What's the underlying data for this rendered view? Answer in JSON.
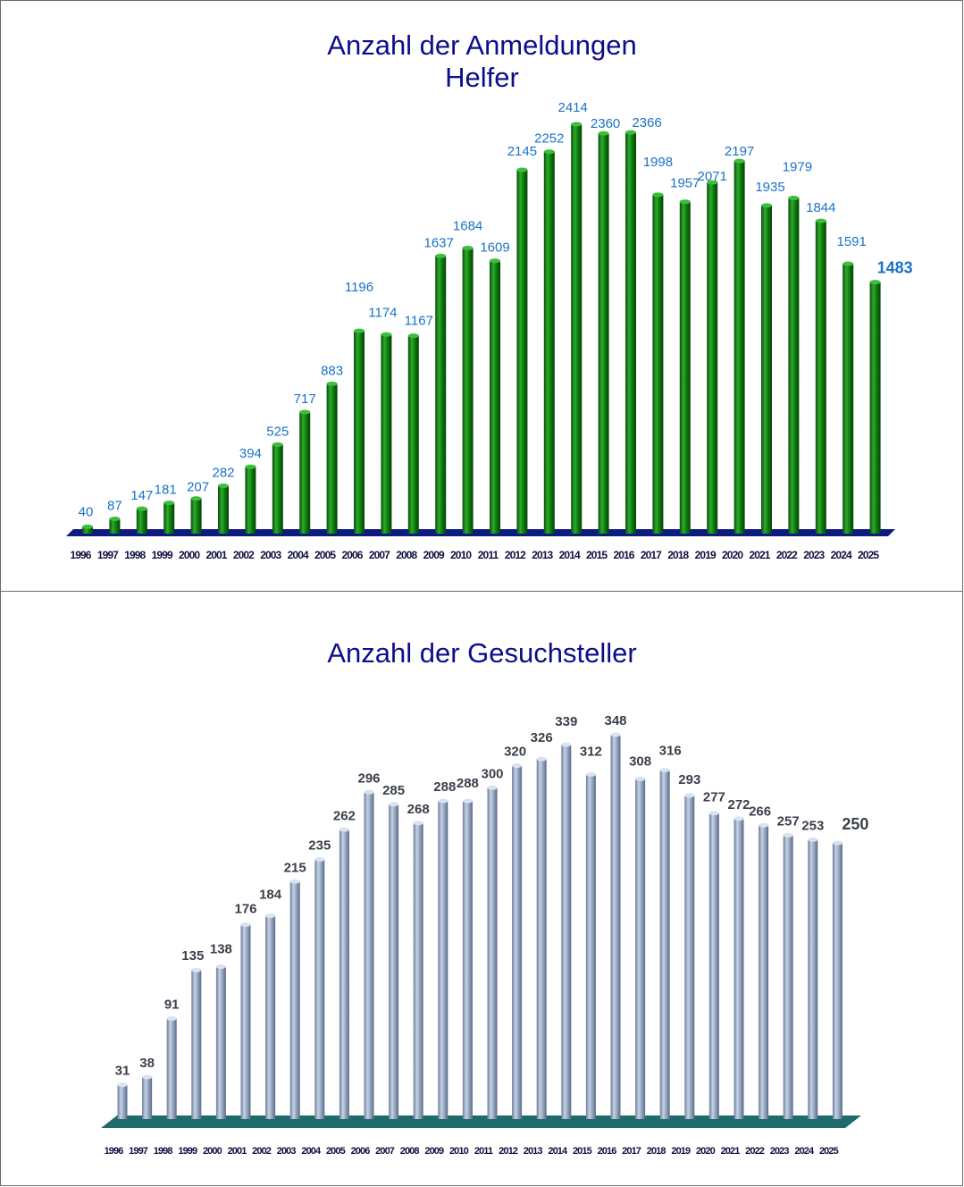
{
  "charts": {
    "top": {
      "title_line1": "Anzahl der Anmeldungen",
      "title_line2": "Helfer"
    },
    "bottom": {
      "title_line1": "Anzahl der Gesuchsteller"
    }
  },
  "colors": {
    "title": "#0d0d8c",
    "top_bar": "#0b7a0b",
    "top_label": "#1a72c8",
    "top_floor": "#0d1a80",
    "bottom_bar": "#8a9cb8",
    "bottom_label": "#3a3f4a",
    "bottom_floor": "#1f6b6b",
    "axis_label": "#101040"
  },
  "chart_data": [
    {
      "type": "bar",
      "title": "Anzahl der Anmeldungen Helfer",
      "categories": [
        "1996",
        "1997",
        "1998",
        "1999",
        "2000",
        "2001",
        "2002",
        "2003",
        "2004",
        "2005",
        "2006",
        "2007",
        "2008",
        "2009",
        "2010",
        "2011",
        "2012",
        "2013",
        "2014",
        "2015",
        "2016",
        "2017",
        "2018",
        "2019",
        "2020",
        "2021",
        "2022",
        "2023",
        "2024",
        "2025"
      ],
      "values": [
        40,
        87,
        147,
        181,
        207,
        282,
        394,
        525,
        717,
        883,
        1196,
        1174,
        1167,
        1637,
        1684,
        1609,
        2145,
        2252,
        2414,
        2360,
        2366,
        1998,
        1957,
        2071,
        2197,
        1935,
        1979,
        1844,
        1591,
        1483
      ],
      "ylim": [
        0,
        2414
      ],
      "grid": false,
      "legend": "none"
    },
    {
      "type": "bar",
      "title": "Anzahl der Gesuchsteller",
      "categories": [
        "1996",
        "1997",
        "1998",
        "1999",
        "2000",
        "2001",
        "2002",
        "2003",
        "2004",
        "2005",
        "2006",
        "2007",
        "2008",
        "2009",
        "2010",
        "2011",
        "2012",
        "2013",
        "2014",
        "2015",
        "2016",
        "2017",
        "2018",
        "2019",
        "2020",
        "2021",
        "2022",
        "2023",
        "2024",
        "2025"
      ],
      "values": [
        31,
        38,
        91,
        135,
        138,
        176,
        184,
        215,
        235,
        262,
        296,
        285,
        268,
        288,
        288,
        300,
        320,
        326,
        339,
        312,
        348,
        308,
        316,
        293,
        277,
        272,
        266,
        257,
        253,
        250
      ],
      "ylim": [
        0,
        348
      ],
      "grid": false,
      "legend": "none"
    }
  ]
}
